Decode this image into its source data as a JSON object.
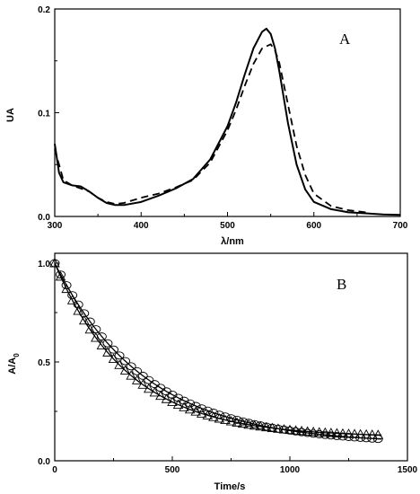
{
  "chart_data": [
    {
      "type": "line",
      "panel_label": "A",
      "xlabel": "λ/nm",
      "ylabel": "UA",
      "xlim": [
        300,
        700
      ],
      "ylim": [
        0,
        0.2
      ],
      "xticks": [
        300,
        400,
        500,
        600,
        700
      ],
      "yticks": [
        0.0,
        0.1,
        0.2
      ],
      "ytick_labels": [
        "0.0",
        "0.1",
        "0.2"
      ],
      "grid": false,
      "series": [
        {
          "style": "solid",
          "x": [
            300,
            305,
            310,
            320,
            330,
            340,
            350,
            360,
            370,
            380,
            400,
            420,
            440,
            460,
            480,
            500,
            510,
            520,
            530,
            540,
            545,
            550,
            555,
            560,
            570,
            580,
            590,
            600,
            620,
            640,
            660,
            680,
            700
          ],
          "y": [
            0.07,
            0.042,
            0.033,
            0.03,
            0.029,
            0.024,
            0.018,
            0.013,
            0.011,
            0.011,
            0.014,
            0.02,
            0.027,
            0.036,
            0.055,
            0.087,
            0.11,
            0.137,
            0.162,
            0.178,
            0.181,
            0.176,
            0.162,
            0.14,
            0.09,
            0.05,
            0.026,
            0.014,
            0.007,
            0.004,
            0.003,
            0.002,
            0.0015
          ]
        },
        {
          "style": "dashed",
          "x": [
            300,
            310,
            320,
            330,
            340,
            350,
            360,
            370,
            380,
            400,
            420,
            440,
            460,
            480,
            500,
            510,
            520,
            530,
            540,
            550,
            555,
            560,
            570,
            580,
            590,
            600,
            620,
            640,
            660
          ],
          "y": [
            0.065,
            0.035,
            0.03,
            0.027,
            0.024,
            0.018,
            0.014,
            0.012,
            0.013,
            0.018,
            0.022,
            0.028,
            0.035,
            0.052,
            0.083,
            0.103,
            0.126,
            0.147,
            0.162,
            0.166,
            0.16,
            0.148,
            0.108,
            0.068,
            0.04,
            0.022,
            0.01,
            0.006,
            0.004
          ]
        }
      ]
    },
    {
      "type": "scatter",
      "panel_label": "B",
      "xlabel": "Time/s",
      "ylabel": "A/A0",
      "xlim": [
        0,
        1500
      ],
      "ylim": [
        0,
        1.05
      ],
      "xticks": [
        0,
        500,
        1000,
        1500
      ],
      "yticks": [
        0.0,
        0.5,
        1.0
      ],
      "ytick_labels": [
        "0.0",
        "0.5",
        "1.0"
      ],
      "grid": false,
      "series": [
        {
          "marker": "circle",
          "k": 0.0026,
          "c": 0.085,
          "x_start": 0,
          "x_end": 1380,
          "x_step": 25
        },
        {
          "marker": "triangle",
          "k": 0.0032,
          "c": 0.12,
          "x_start": 0,
          "x_end": 1380,
          "x_step": 25
        }
      ],
      "fits": [
        {
          "style": "solid",
          "k": 0.0026,
          "c": 0.085
        },
        {
          "style": "solid",
          "k": 0.0032,
          "c": 0.12
        }
      ]
    }
  ]
}
